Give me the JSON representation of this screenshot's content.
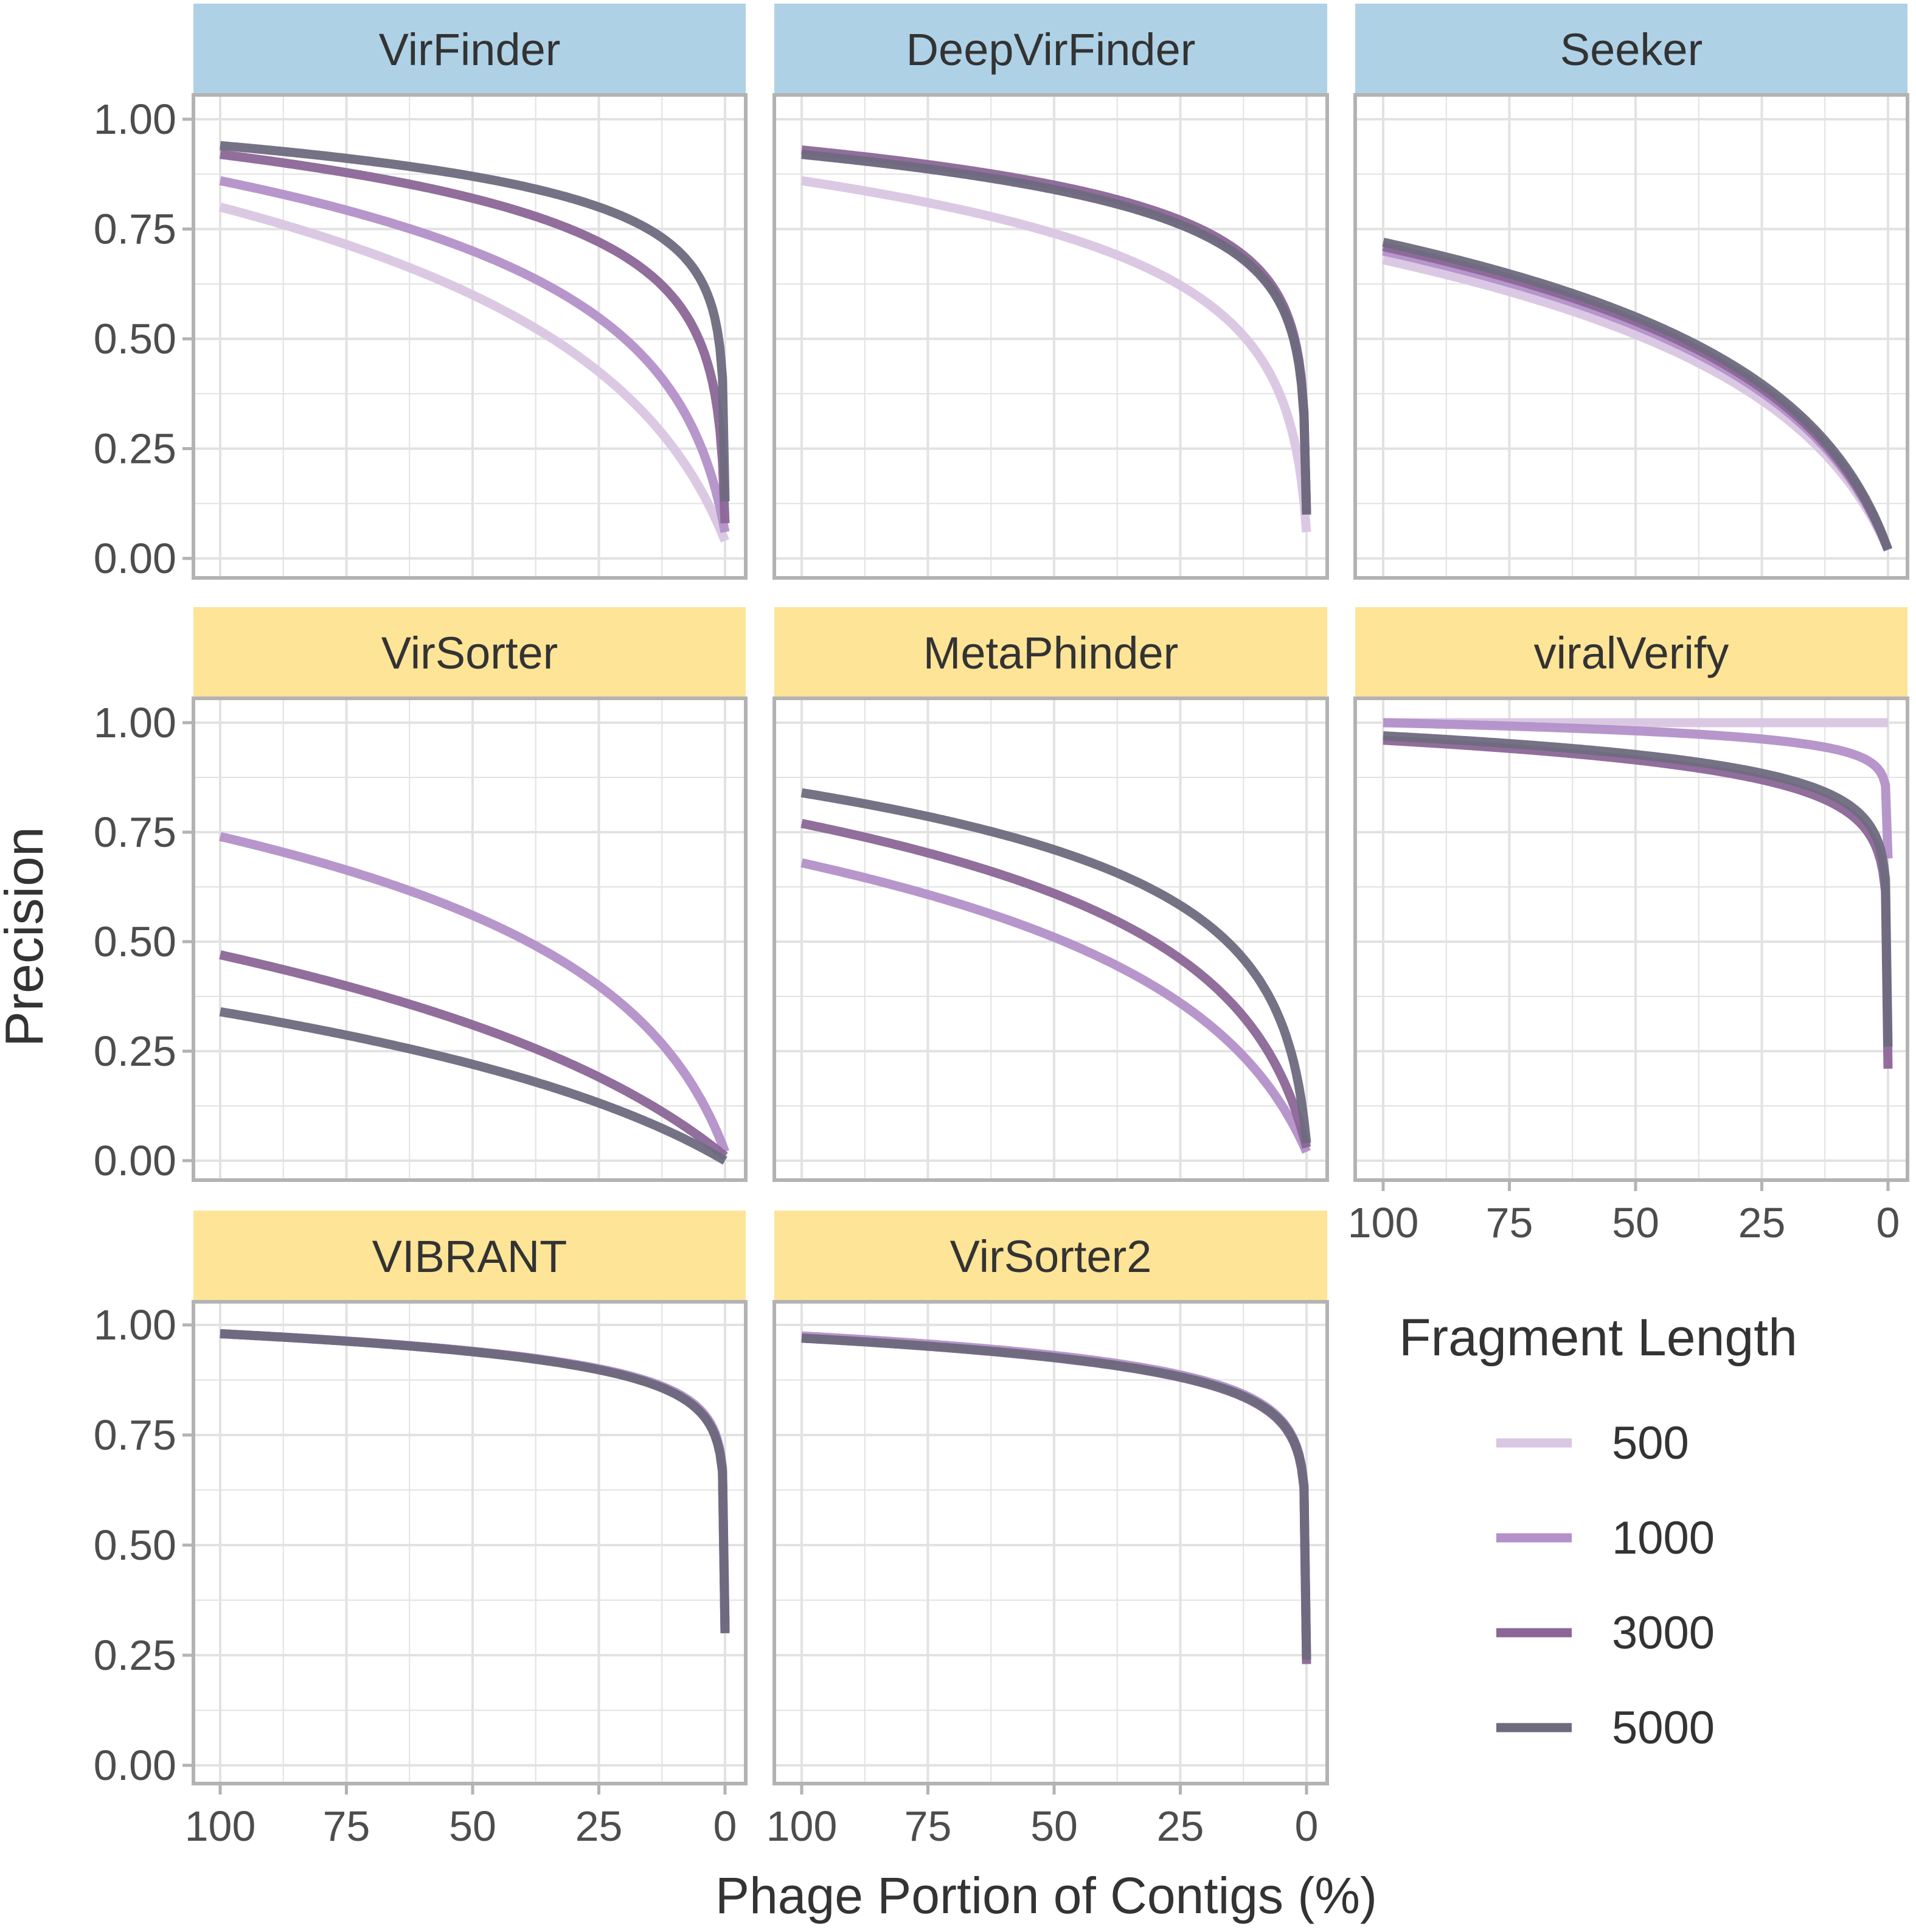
{
  "chart_data": {
    "type": "line",
    "title": "",
    "xlabel": "Phage Portion of Contigs (%)",
    "ylabel": "Precision",
    "x_ticks": [
      "100",
      "75",
      "50",
      "25",
      "0"
    ],
    "x_tick_values": [
      100,
      75,
      50,
      25,
      0
    ],
    "y_ticks": [
      "1.00",
      "0.75",
      "0.50",
      "0.25",
      "0.00"
    ],
    "y_tick_values": [
      1.0,
      0.75,
      0.5,
      0.25,
      0.0
    ],
    "xlim": [
      100,
      0
    ],
    "ylim": [
      0,
      1
    ],
    "legend": {
      "title": "Fragment Length",
      "position": "bottom-right",
      "entries": [
        {
          "name": "500",
          "color": "#d9c6e3"
        },
        {
          "name": "1000",
          "color": "#b390c9"
        },
        {
          "name": "3000",
          "color": "#8b6697"
        },
        {
          "name": "5000",
          "color": "#6f6a7e"
        }
      ]
    },
    "strip_colors": {
      "blue": "#aed1e6",
      "yellow": "#fde497"
    },
    "panels": [
      {
        "name": "VirFinder",
        "strip": "blue",
        "series": [
          {
            "name": "500",
            "x": [
              100,
              50,
              0
            ],
            "y": [
              0.8,
              0.6,
              0.04
            ]
          },
          {
            "name": "1000",
            "x": [
              100,
              50,
              0
            ],
            "y": [
              0.86,
              0.7,
              0.06
            ]
          },
          {
            "name": "3000",
            "x": [
              100,
              50,
              0
            ],
            "y": [
              0.92,
              0.82,
              0.08
            ]
          },
          {
            "name": "5000",
            "x": [
              100,
              50,
              0
            ],
            "y": [
              0.94,
              0.87,
              0.13
            ]
          }
        ]
      },
      {
        "name": "DeepVirFinder",
        "strip": "blue",
        "series": [
          {
            "name": "500",
            "x": [
              100,
              50,
              0
            ],
            "y": [
              0.86,
              0.74,
              0.06
            ]
          },
          {
            "name": "1000",
            "x": [
              100,
              50,
              0
            ],
            "y": [
              0.92,
              0.84,
              0.1
            ]
          },
          {
            "name": "3000",
            "x": [
              100,
              50,
              0
            ],
            "y": [
              0.93,
              0.85,
              0.1
            ]
          },
          {
            "name": "5000",
            "x": [
              100,
              50,
              0
            ],
            "y": [
              0.92,
              0.84,
              0.1
            ]
          }
        ]
      },
      {
        "name": "Seeker",
        "strip": "blue",
        "series": [
          {
            "name": "500",
            "x": [
              100,
              50,
              0
            ],
            "y": [
              0.68,
              0.51,
              0.02
            ]
          },
          {
            "name": "1000",
            "x": [
              100,
              50,
              0
            ],
            "y": [
              0.7,
              0.53,
              0.02
            ]
          },
          {
            "name": "3000",
            "x": [
              100,
              50,
              0
            ],
            "y": [
              0.71,
              0.54,
              0.02
            ]
          },
          {
            "name": "5000",
            "x": [
              100,
              50,
              0
            ],
            "y": [
              0.72,
              0.55,
              0.02
            ]
          }
        ]
      },
      {
        "name": "VirSorter",
        "strip": "yellow",
        "series": [
          {
            "name": "1000",
            "x": [
              100,
              50,
              0
            ],
            "y": [
              0.74,
              0.56,
              0.02
            ]
          },
          {
            "name": "3000",
            "x": [
              100,
              50,
              0
            ],
            "y": [
              0.47,
              0.31,
              0.01
            ]
          },
          {
            "name": "5000",
            "x": [
              100,
              50,
              0
            ],
            "y": [
              0.34,
              0.22,
              0.0
            ]
          }
        ]
      },
      {
        "name": "MetaPhinder",
        "strip": "yellow",
        "series": [
          {
            "name": "1000",
            "x": [
              100,
              50,
              0
            ],
            "y": [
              0.68,
              0.51,
              0.02
            ]
          },
          {
            "name": "3000",
            "x": [
              100,
              50,
              0
            ],
            "y": [
              0.77,
              0.61,
              0.03
            ]
          },
          {
            "name": "5000",
            "x": [
              100,
              50,
              0
            ],
            "y": [
              0.84,
              0.71,
              0.04
            ]
          }
        ]
      },
      {
        "name": "viralVerify",
        "strip": "yellow",
        "series": [
          {
            "name": "500",
            "x": [
              100,
              50,
              0
            ],
            "y": [
              1.0,
              1.0,
              1.0
            ]
          },
          {
            "name": "1000",
            "x": [
              100,
              50,
              0
            ],
            "y": [
              1.0,
              0.995,
              0.69
            ]
          },
          {
            "name": "3000",
            "x": [
              100,
              50,
              0
            ],
            "y": [
              0.96,
              0.93,
              0.21
            ]
          },
          {
            "name": "5000",
            "x": [
              100,
              50,
              0
            ],
            "y": [
              0.97,
              0.94,
              0.26
            ]
          }
        ]
      },
      {
        "name": "VIBRANT",
        "strip": "yellow",
        "series": [
          {
            "name": "1000",
            "x": [
              100,
              50,
              0
            ],
            "y": [
              0.98,
              0.96,
              0.32
            ]
          },
          {
            "name": "3000",
            "x": [
              100,
              50,
              0
            ],
            "y": [
              0.98,
              0.955,
              0.3
            ]
          },
          {
            "name": "5000",
            "x": [
              100,
              50,
              0
            ],
            "y": [
              0.98,
              0.955,
              0.3
            ]
          }
        ]
      },
      {
        "name": "VirSorter2",
        "strip": "yellow",
        "series": [
          {
            "name": "1000",
            "x": [
              100,
              50,
              0
            ],
            "y": [
              0.975,
              0.945,
              0.24
            ]
          },
          {
            "name": "3000",
            "x": [
              100,
              50,
              0
            ],
            "y": [
              0.97,
              0.935,
              0.23
            ]
          },
          {
            "name": "5000",
            "x": [
              100,
              50,
              0
            ],
            "y": [
              0.97,
              0.93,
              0.24
            ]
          }
        ]
      }
    ]
  }
}
